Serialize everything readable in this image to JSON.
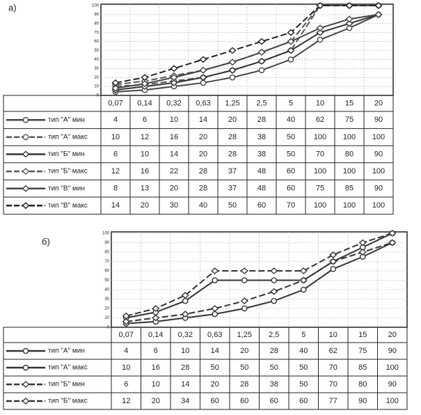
{
  "chart_data": [
    {
      "type": "line",
      "label": "а)",
      "categories": [
        "0,07",
        "0,14",
        "0,32",
        "0,63",
        "1,25",
        "2,5",
        "5",
        "10",
        "15",
        "20"
      ],
      "ylim": [
        0,
        100
      ],
      "yticks": [
        0,
        10,
        20,
        30,
        40,
        50,
        60,
        70,
        80,
        90,
        100
      ],
      "grid": true,
      "series": [
        {
          "name": "тип \"А\" мин",
          "color": "#444",
          "marker": "circle",
          "dash": false,
          "values": [
            4,
            6,
            10,
            14,
            20,
            28,
            40,
            62,
            75,
            90
          ]
        },
        {
          "name": "тип \"А\" макс",
          "color": "#555",
          "marker": "circle",
          "dash": true,
          "values": [
            10,
            12,
            16,
            20,
            28,
            38,
            50,
            100,
            100,
            100
          ]
        },
        {
          "name": "тип \"Б\" мин",
          "color": "#333",
          "marker": "diamond",
          "dash": false,
          "values": [
            6,
            10,
            14,
            20,
            28,
            38,
            50,
            70,
            80,
            90
          ]
        },
        {
          "name": "тип \"Б\" макс",
          "color": "#555",
          "marker": "diamond",
          "dash": true,
          "values": [
            12,
            16,
            22,
            28,
            37,
            48,
            60,
            100,
            100,
            100
          ]
        },
        {
          "name": "тип \"В\" мин",
          "color": "#444",
          "marker": "diamond",
          "dash": false,
          "values": [
            8,
            13,
            20,
            28,
            37,
            48,
            60,
            75,
            85,
            90
          ]
        },
        {
          "name": "тип \"В\" макс",
          "color": "#222",
          "marker": "diamond",
          "dash": true,
          "values": [
            14,
            20,
            30,
            40,
            50,
            60,
            70,
            100,
            100,
            100
          ]
        }
      ]
    },
    {
      "type": "line",
      "label": "б)",
      "categories": [
        "0,07",
        "0,14",
        "0,32",
        "0,63",
        "1,25",
        "2,5",
        "5",
        "10",
        "15",
        "20"
      ],
      "ylim": [
        0,
        100
      ],
      "yticks": [
        0,
        10,
        20,
        30,
        40,
        50,
        60,
        70,
        80,
        90,
        100
      ],
      "grid": true,
      "series": [
        {
          "name": "тип \"А\" мин",
          "color": "#333",
          "marker": "circle",
          "dash": false,
          "values": [
            4,
            6,
            10,
            14,
            20,
            28,
            40,
            62,
            75,
            90
          ]
        },
        {
          "name": "тип \"А\" макс",
          "color": "#333",
          "marker": "circle",
          "dash": false,
          "values": [
            10,
            16,
            28,
            50,
            50,
            50,
            50,
            70,
            85,
            100
          ]
        },
        {
          "name": "тип \"Б\" мин",
          "color": "#333",
          "marker": "diamond",
          "dash": true,
          "values": [
            6,
            10,
            14,
            20,
            28,
            38,
            50,
            70,
            80,
            90
          ]
        },
        {
          "name": "тип \"Б\" макс",
          "color": "#333",
          "marker": "diamond",
          "dash": true,
          "values": [
            12,
            20,
            34,
            60,
            60,
            60,
            60,
            77,
            90,
            100
          ]
        }
      ]
    }
  ]
}
